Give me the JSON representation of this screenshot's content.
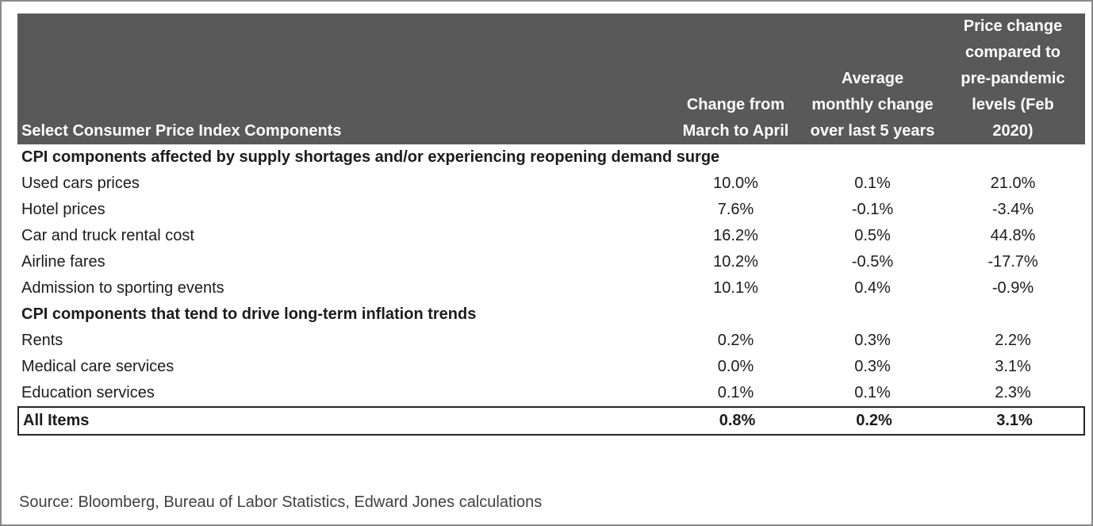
{
  "table": {
    "header": {
      "component_col": "Select Consumer Price Index Components",
      "change_col": "Change from\nMarch to April",
      "avg_col": "Average\nmonthly change\nover last 5 years",
      "prepandemic_col": "Price change\ncompared to\npre-pandemic\nlevels (Feb\n2020)"
    },
    "sections": [
      {
        "title": "CPI components affected by supply shortages and/or experiencing reopening demand surge",
        "rows": [
          {
            "label": "Used cars prices",
            "values": [
              "10.0%",
              "0.1%",
              "21.0%"
            ]
          },
          {
            "label": "Hotel prices",
            "values": [
              "7.6%",
              "-0.1%",
              "-3.4%"
            ]
          },
          {
            "label": "Car and truck rental cost",
            "values": [
              "16.2%",
              "0.5%",
              "44.8%"
            ]
          },
          {
            "label": "Airline fares",
            "values": [
              "10.2%",
              "-0.5%",
              "-17.7%"
            ]
          },
          {
            "label": "Admission to sporting events",
            "values": [
              "10.1%",
              "0.4%",
              "-0.9%"
            ]
          }
        ]
      },
      {
        "title": "CPI components that tend to drive long-term inflation trends",
        "rows": [
          {
            "label": "Rents",
            "values": [
              "0.2%",
              "0.3%",
              "2.2%"
            ]
          },
          {
            "label": "Medical care services",
            "values": [
              "0.0%",
              "0.3%",
              "3.1%"
            ]
          },
          {
            "label": "Education services",
            "values": [
              "0.1%",
              "0.1%",
              "2.3%"
            ]
          }
        ]
      }
    ],
    "total_row": {
      "label": "All Items",
      "values": [
        "0.8%",
        "0.2%",
        "3.1%"
      ]
    }
  },
  "source_note": "Source: Bloomberg, Bureau of Labor Statistics, Edward Jones calculations",
  "colors": {
    "header_bg": "#595959",
    "header_text": "#fdfdfd",
    "body_text": "#1c1c1c",
    "total_border": "#262626",
    "outer_border": "#8a8a8a",
    "source_text": "#414141"
  },
  "chart_data": {
    "type": "table",
    "title": "Select Consumer Price Index Components",
    "columns": [
      "Select Consumer Price Index Components",
      "Change from March to April",
      "Average monthly change over last 5 years",
      "Price change compared to pre-pandemic levels (Feb 2020)"
    ],
    "groups": [
      {
        "group_label": "CPI components affected by supply shortages and/or experiencing reopening demand surge",
        "rows": [
          [
            "Used cars prices",
            10.0,
            0.1,
            21.0
          ],
          [
            "Hotel prices",
            7.6,
            -0.1,
            -3.4
          ],
          [
            "Car and truck rental cost",
            16.2,
            0.5,
            44.8
          ],
          [
            "Airline fares",
            10.2,
            -0.5,
            -17.7
          ],
          [
            "Admission to sporting events",
            10.1,
            0.4,
            -0.9
          ]
        ]
      },
      {
        "group_label": "CPI components that tend to drive long-term inflation trends",
        "rows": [
          [
            "Rents",
            0.2,
            0.3,
            2.2
          ],
          [
            "Medical care services",
            0.0,
            0.3,
            3.1
          ],
          [
            "Education services",
            0.1,
            0.1,
            2.3
          ]
        ]
      }
    ],
    "total": [
      "All Items",
      0.8,
      0.2,
      3.1
    ],
    "units": "percent",
    "source": "Source: Bloomberg, Bureau of Labor Statistics, Edward Jones calculations"
  }
}
